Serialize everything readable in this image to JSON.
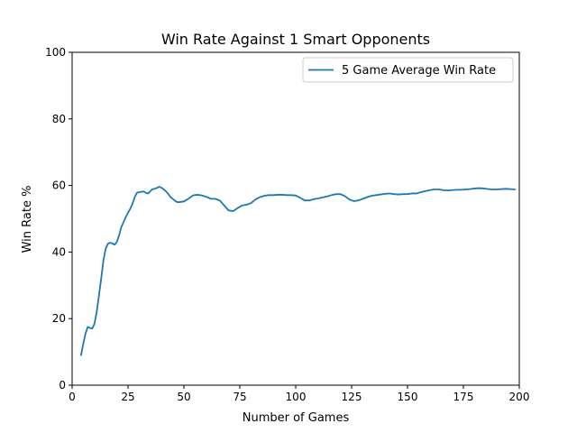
{
  "chart_data": {
    "type": "line",
    "title": "Win Rate Against 1 Smart Opponents",
    "xlabel": "Number of Games",
    "ylabel": "Win Rate %",
    "xlim": [
      0,
      200
    ],
    "ylim": [
      0,
      100
    ],
    "xticks": [
      "0",
      "25",
      "50",
      "75",
      "100",
      "125",
      "150",
      "175",
      "200"
    ],
    "yticks": [
      "0",
      "20",
      "40",
      "60",
      "80",
      "100"
    ],
    "grid": false,
    "legend_position": "top-right",
    "series": [
      {
        "name": "5 Game Average Win Rate",
        "color": "#1f77b4",
        "x": [
          4,
          5,
          6,
          7,
          8,
          9,
          10,
          11,
          12,
          13,
          14,
          15,
          16,
          17,
          18,
          19,
          20,
          21,
          22,
          23,
          24,
          25,
          26,
          27,
          28,
          29,
          30,
          31,
          32,
          33,
          34,
          35,
          36,
          37,
          38,
          39,
          40,
          41,
          42,
          43,
          44,
          45,
          46,
          47,
          48,
          49,
          50,
          52,
          54,
          56,
          58,
          60,
          62,
          64,
          66,
          68,
          70,
          72,
          74,
          76,
          78,
          80,
          82,
          84,
          86,
          88,
          90,
          92,
          94,
          96,
          98,
          100,
          102,
          104,
          106,
          108,
          110,
          112,
          114,
          116,
          118,
          120,
          122,
          124,
          126,
          128,
          130,
          132,
          134,
          136,
          138,
          140,
          142,
          144,
          146,
          148,
          150,
          152,
          154,
          156,
          158,
          160,
          162,
          164,
          166,
          168,
          170,
          172,
          174,
          176,
          178,
          180,
          182,
          184,
          186,
          188,
          190,
          192,
          194,
          196,
          198
        ],
        "values": [
          9,
          12.5,
          15.5,
          17.5,
          17.2,
          17.0,
          18.5,
          22.0,
          27.0,
          32.0,
          37.5,
          41.0,
          42.5,
          42.8,
          42.6,
          42.2,
          43.0,
          45.0,
          47.5,
          49.0,
          50.5,
          51.8,
          53.0,
          54.5,
          56.5,
          57.8,
          58.0,
          58.1,
          58.2,
          57.8,
          57.6,
          58.3,
          58.9,
          59.0,
          59.3,
          59.6,
          59.3,
          58.8,
          58.2,
          57.5,
          56.5,
          56.0,
          55.4,
          55.0,
          55.0,
          55.1,
          55.2,
          56.0,
          57.0,
          57.2,
          57.0,
          56.6,
          56.0,
          56.0,
          55.5,
          54.0,
          52.5,
          52.3,
          53.2,
          54.0,
          54.2,
          54.7,
          55.8,
          56.5,
          56.9,
          57.1,
          57.1,
          57.2,
          57.2,
          57.1,
          57.1,
          57.0,
          56.3,
          55.5,
          55.5,
          55.9,
          56.1,
          56.4,
          56.7,
          57.1,
          57.4,
          57.4,
          56.8,
          55.8,
          55.3,
          55.5,
          56.0,
          56.5,
          56.9,
          57.1,
          57.3,
          57.5,
          57.6,
          57.4,
          57.3,
          57.4,
          57.4,
          57.6,
          57.6,
          58.0,
          58.3,
          58.6,
          58.8,
          58.8,
          58.6,
          58.5,
          58.6,
          58.7,
          58.7,
          58.8,
          58.9,
          59.1,
          59.2,
          59.1,
          58.9,
          58.8,
          58.8,
          58.9,
          59.0,
          58.9,
          58.8
        ]
      }
    ]
  }
}
